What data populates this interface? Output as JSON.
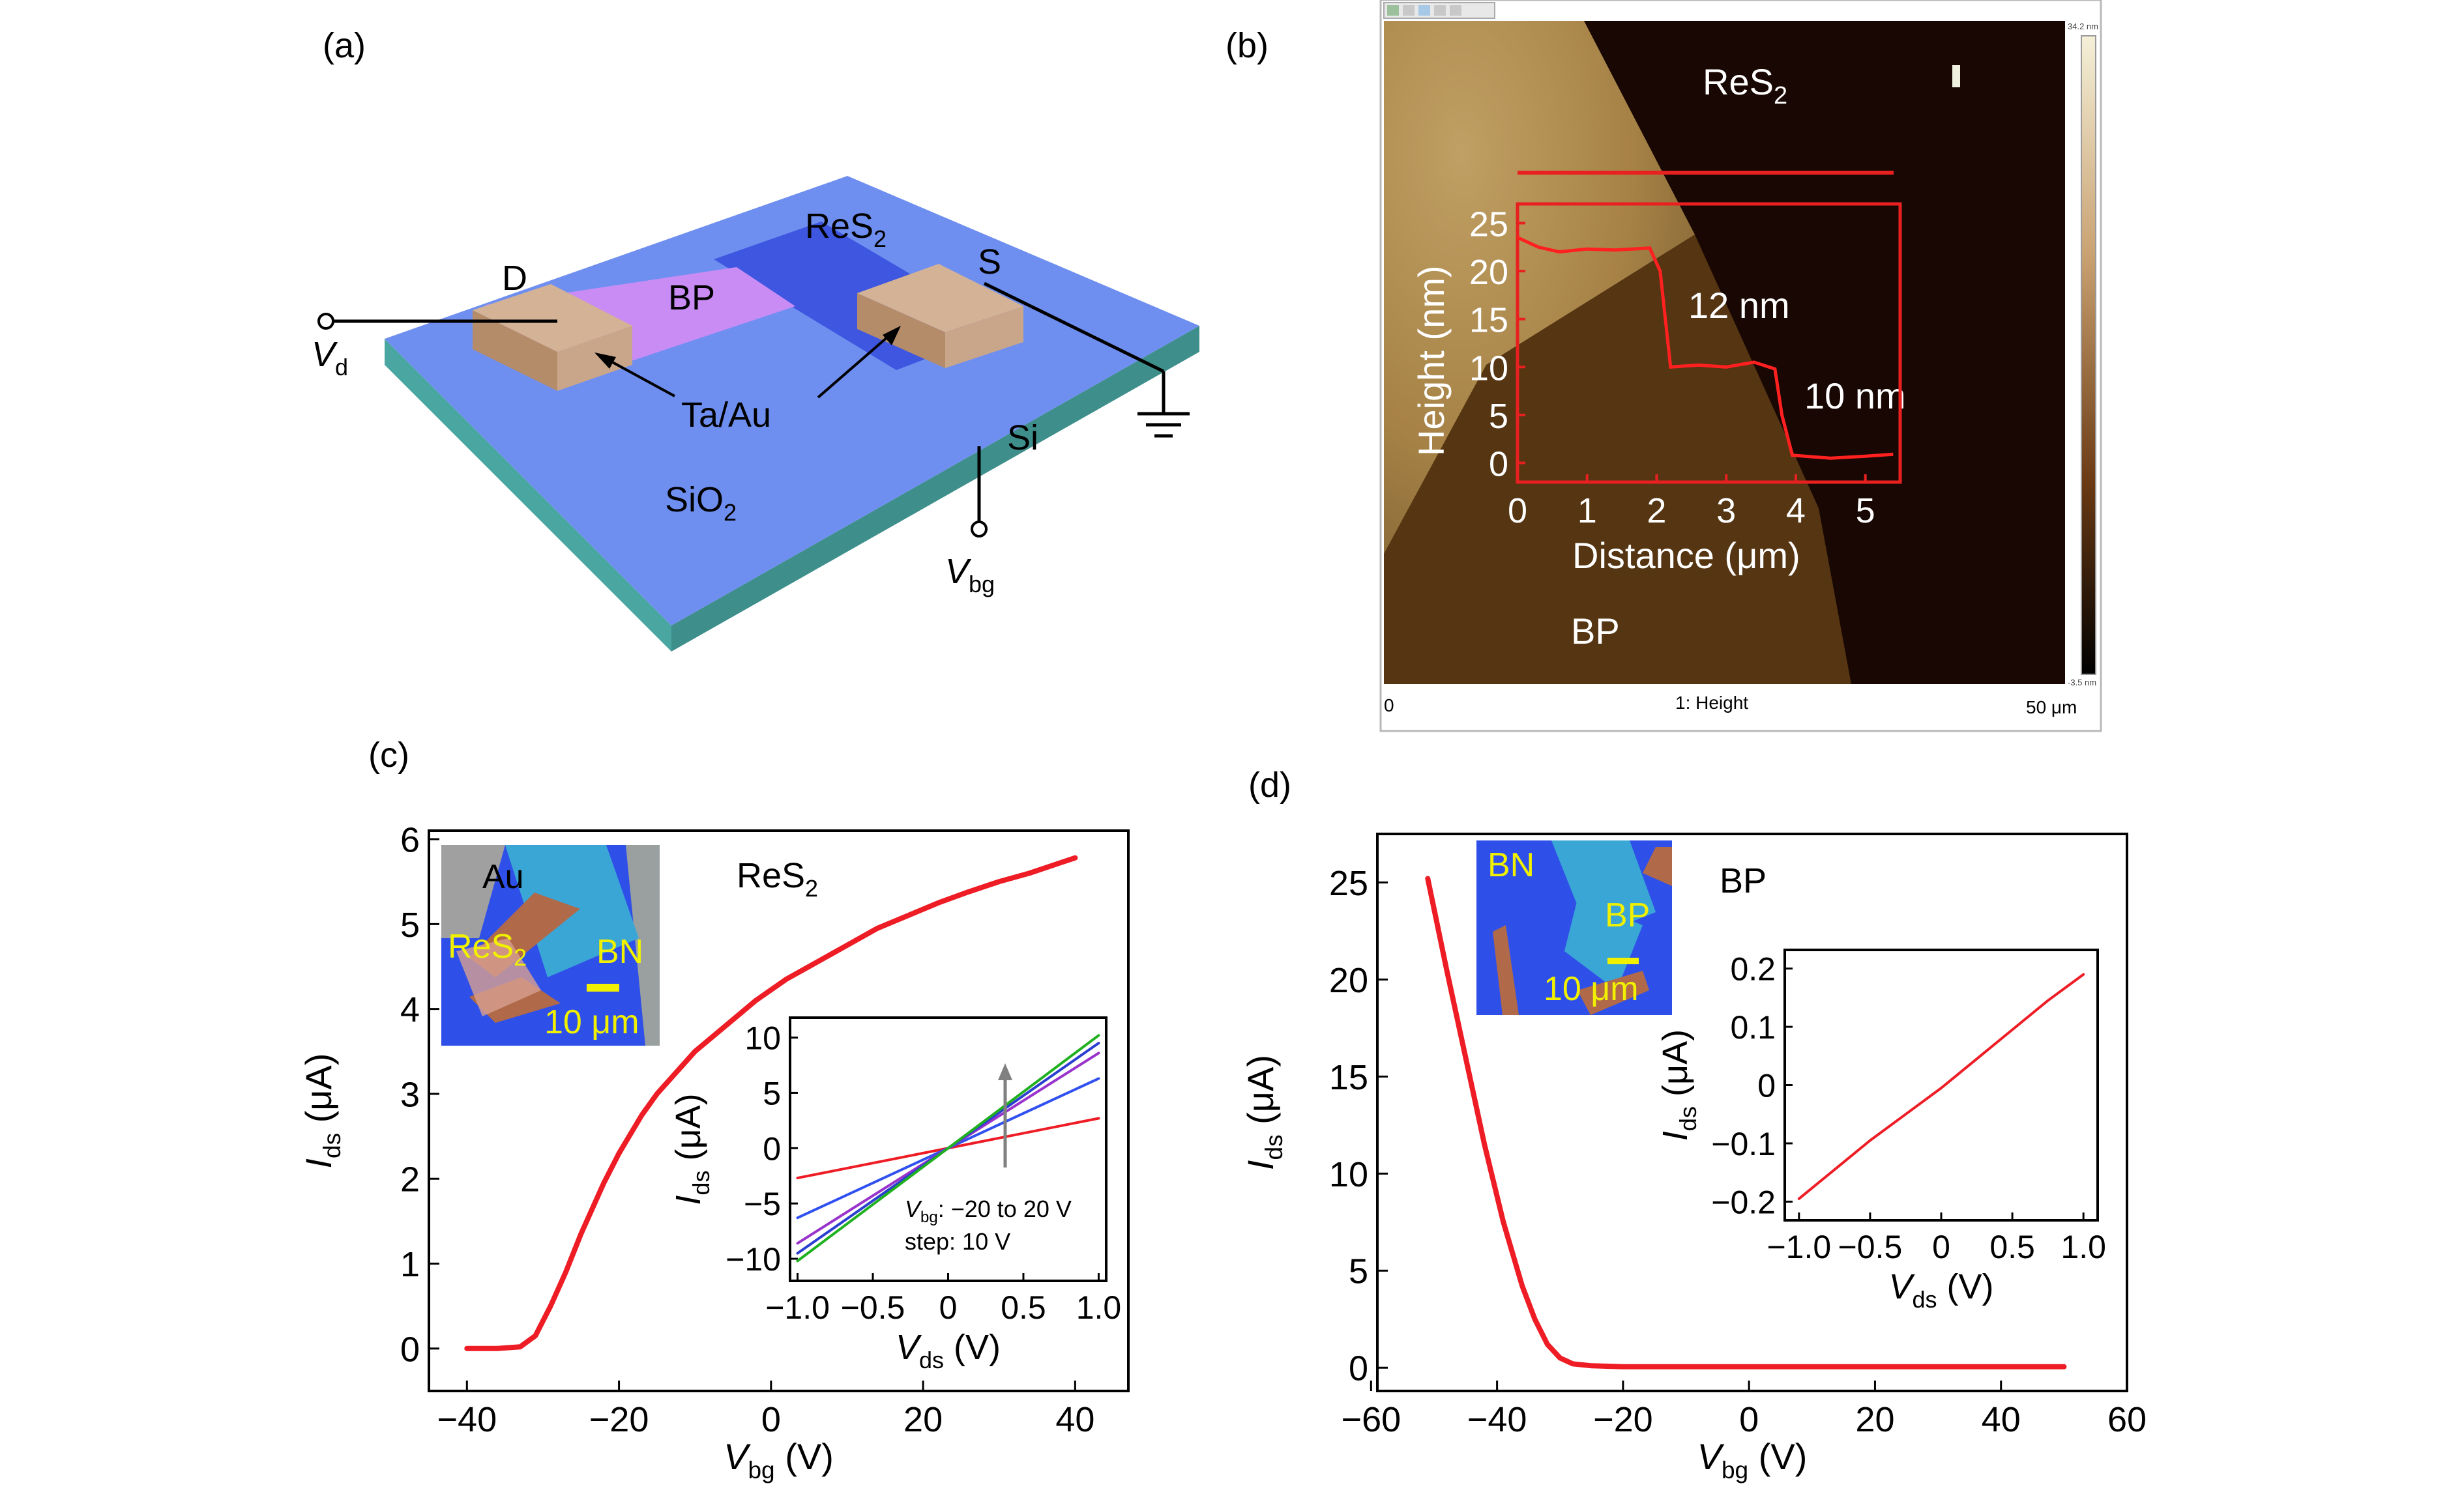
{
  "panels": {
    "a": {
      "label": "(a)",
      "labels": {
        "D": "D",
        "S": "S",
        "BP": "BP",
        "ReS": "ReS",
        "ReS_sub": "2",
        "TaAu": "Ta/Au",
        "Si": "Si",
        "SiO": "SiO",
        "SiO_sub": "2",
        "Vd": "V",
        "Vd_sub": "d",
        "Vbg": "V",
        "Vbg_sub": "bg"
      },
      "colors": {
        "substrate_top": "#6f8ff0",
        "substrate_side": "#4a6ed8",
        "substrate_edge": "#4aa6a0",
        "bp": "#c98cf5",
        "res2": "#3f57e0",
        "electrode": "#c9a68a"
      }
    },
    "b": {
      "label": "(b)",
      "labels": {
        "ReS": "ReS",
        "ReS_sub": "2",
        "BP": "BP",
        "step1": "12 nm",
        "step2": "10 nm",
        "channel": "1: Height",
        "scale_left": "0",
        "scale_right": "50 μm",
        "cbar_top": "34.2 nm",
        "cbar_bottom": "-3.5 nm"
      },
      "profile": {
        "xlabel": "Distance (μm)",
        "ylabel": "Height (nm)",
        "xticks": [
          "0",
          "1",
          "2",
          "3",
          "4",
          "5"
        ],
        "yticks": [
          "0",
          "5",
          "10",
          "15",
          "20",
          "25"
        ],
        "xlim": [
          0,
          5.5
        ],
        "ylim": [
          -2,
          27
        ],
        "x": [
          0,
          0.3,
          0.6,
          1.0,
          1.4,
          1.9,
          2.05,
          2.2,
          2.6,
          3.0,
          3.4,
          3.7,
          3.8,
          3.95,
          4.5,
          5.0,
          5.4
        ],
        "y": [
          23.5,
          22.5,
          22.0,
          22.3,
          22.2,
          22.4,
          20.0,
          10.0,
          10.2,
          10.0,
          10.5,
          9.8,
          5.0,
          0.8,
          0.5,
          0.7,
          0.9
        ]
      },
      "colors": {
        "res2": "#1a0804",
        "bp_light": "#c4a160",
        "bp_dark": "#5a3814",
        "curve": "#ff2020"
      }
    },
    "c": {
      "label": "(c)",
      "annotation": "ReS",
      "annotation_sub": "2",
      "inset_image": {
        "Au": "Au",
        "ReS": "ReS",
        "ReS_sub": "2",
        "BN": "BN",
        "scale": "10 μm"
      },
      "inset_note": {
        "line1_v": "V",
        "line1_sub": "bg",
        "line1_rest": ": −20 to 20 V",
        "line2": "step: 10 V"
      }
    },
    "d": {
      "label": "(d)",
      "annotation": "BP",
      "inset_image": {
        "BN": "BN",
        "BP": "BP",
        "scale": "10 μm"
      }
    }
  },
  "chart_data": [
    {
      "id": "c-main",
      "type": "line",
      "xlabel": "V",
      "xlabel_sub": "bg",
      "xlabel_unit": " (V)",
      "ylabel": "I",
      "ylabel_sub": "ds",
      "ylabel_unit": " (μA)",
      "xlim": [
        -45,
        47
      ],
      "ylim": [
        -0.5,
        6.1
      ],
      "xticks": [
        -40,
        -20,
        0,
        20,
        40
      ],
      "yticks": [
        0,
        1,
        2,
        3,
        4,
        5,
        6
      ],
      "xticklabels": [
        "−40",
        "−20",
        "0",
        "20",
        "40"
      ],
      "yticklabels": [
        "0",
        "1",
        "2",
        "3",
        "4",
        "5",
        "6"
      ],
      "series": [
        {
          "color": "#ee1c25",
          "x": [
            -40,
            -36,
            -33,
            -31,
            -29,
            -27,
            -25,
            -22,
            -20,
            -17,
            -15,
            -12,
            -10,
            -6,
            -2,
            2,
            6,
            10,
            14,
            18,
            22,
            26,
            30,
            34,
            38,
            40
          ],
          "y": [
            0,
            0,
            0.02,
            0.15,
            0.5,
            0.9,
            1.35,
            1.95,
            2.3,
            2.75,
            3.0,
            3.3,
            3.5,
            3.8,
            4.1,
            4.35,
            4.55,
            4.75,
            4.95,
            5.1,
            5.25,
            5.38,
            5.5,
            5.6,
            5.72,
            5.78
          ]
        }
      ]
    },
    {
      "id": "c-inset",
      "type": "line",
      "xlabel": "V",
      "xlabel_sub": "ds",
      "xlabel_unit": " (V)",
      "ylabel": "I",
      "ylabel_sub": "ds",
      "ylabel_unit": " (μA)",
      "xlim": [
        -1.05,
        1.05
      ],
      "ylim": [
        -12,
        11.8
      ],
      "xticks": [
        -1.0,
        -0.5,
        0,
        0.5,
        1.0
      ],
      "yticks": [
        -10,
        -5,
        0,
        5,
        10
      ],
      "xticklabels": [
        "−1.0",
        "−0.5",
        "0",
        "0.5",
        "1.0"
      ],
      "yticklabels": [
        "−10",
        "−5",
        "0",
        "5",
        "10"
      ],
      "series": [
        {
          "color": "#ee1c25",
          "x": [
            -1.0,
            1.0
          ],
          "y": [
            -2.7,
            2.7
          ]
        },
        {
          "color": "#3050f0",
          "x": [
            -1.0,
            1.0
          ],
          "y": [
            -6.3,
            6.3
          ]
        },
        {
          "color": "#9933cc",
          "x": [
            -1.0,
            1.0
          ],
          "y": [
            -8.6,
            8.6
          ]
        },
        {
          "color": "#2a3fd0",
          "x": [
            -1.0,
            1.0
          ],
          "y": [
            -9.5,
            9.5
          ]
        },
        {
          "color": "#20b020",
          "x": [
            -1.0,
            1.0
          ],
          "y": [
            -10.2,
            10.2
          ]
        }
      ]
    },
    {
      "id": "d-main",
      "type": "line",
      "xlabel": "V",
      "xlabel_sub": "bg",
      "xlabel_unit": " (V)",
      "ylabel": "I",
      "ylabel_sub": "ds",
      "ylabel_unit": " (μA)",
      "xlim": [
        -59,
        60
      ],
      "ylim": [
        -1.2,
        27.5
      ],
      "xticks": [
        -60,
        -40,
        -20,
        0,
        20,
        40,
        60
      ],
      "yticks": [
        0,
        5,
        10,
        15,
        20,
        25
      ],
      "xticklabels": [
        "−60",
        "−40",
        "−20",
        "0",
        "20",
        "40",
        "60"
      ],
      "yticklabels": [
        "0",
        "5",
        "10",
        "15",
        "20",
        "25"
      ],
      "series": [
        {
          "color": "#ee1c25",
          "x": [
            -51,
            -48,
            -45,
            -42,
            -39,
            -36,
            -34,
            -32,
            -30,
            -28,
            -25,
            -20,
            -10,
            0,
            10,
            20,
            30,
            40,
            50
          ],
          "y": [
            25.2,
            20.5,
            16.0,
            11.5,
            7.5,
            4.2,
            2.5,
            1.2,
            0.5,
            0.2,
            0.1,
            0.05,
            0.05,
            0.05,
            0.05,
            0.05,
            0.05,
            0.05,
            0.05
          ]
        }
      ]
    },
    {
      "id": "d-inset",
      "type": "line",
      "xlabel": "V",
      "xlabel_sub": "ds",
      "xlabel_unit": " (V)",
      "ylabel": "I",
      "ylabel_sub": "ds",
      "ylabel_unit": " (μA)",
      "xlim": [
        -1.1,
        1.1
      ],
      "ylim": [
        -0.232,
        0.232
      ],
      "xticks": [
        -1.0,
        -0.5,
        0,
        0.5,
        1.0
      ],
      "yticks": [
        -0.2,
        -0.1,
        0,
        0.1,
        0.2
      ],
      "xticklabels": [
        "−1.0",
        "−0.5",
        "0",
        "0.5",
        "1.0"
      ],
      "yticklabels": [
        "−0.2",
        "−0.1",
        "0",
        "0.1",
        "0.2"
      ],
      "series": [
        {
          "color": "#ee1c25",
          "x": [
            -1.0,
            -0.75,
            -0.5,
            -0.25,
            0,
            0.25,
            0.5,
            0.75,
            1.0
          ],
          "y": [
            -0.195,
            -0.145,
            -0.095,
            -0.05,
            -0.005,
            0.045,
            0.095,
            0.145,
            0.19
          ]
        }
      ]
    }
  ]
}
